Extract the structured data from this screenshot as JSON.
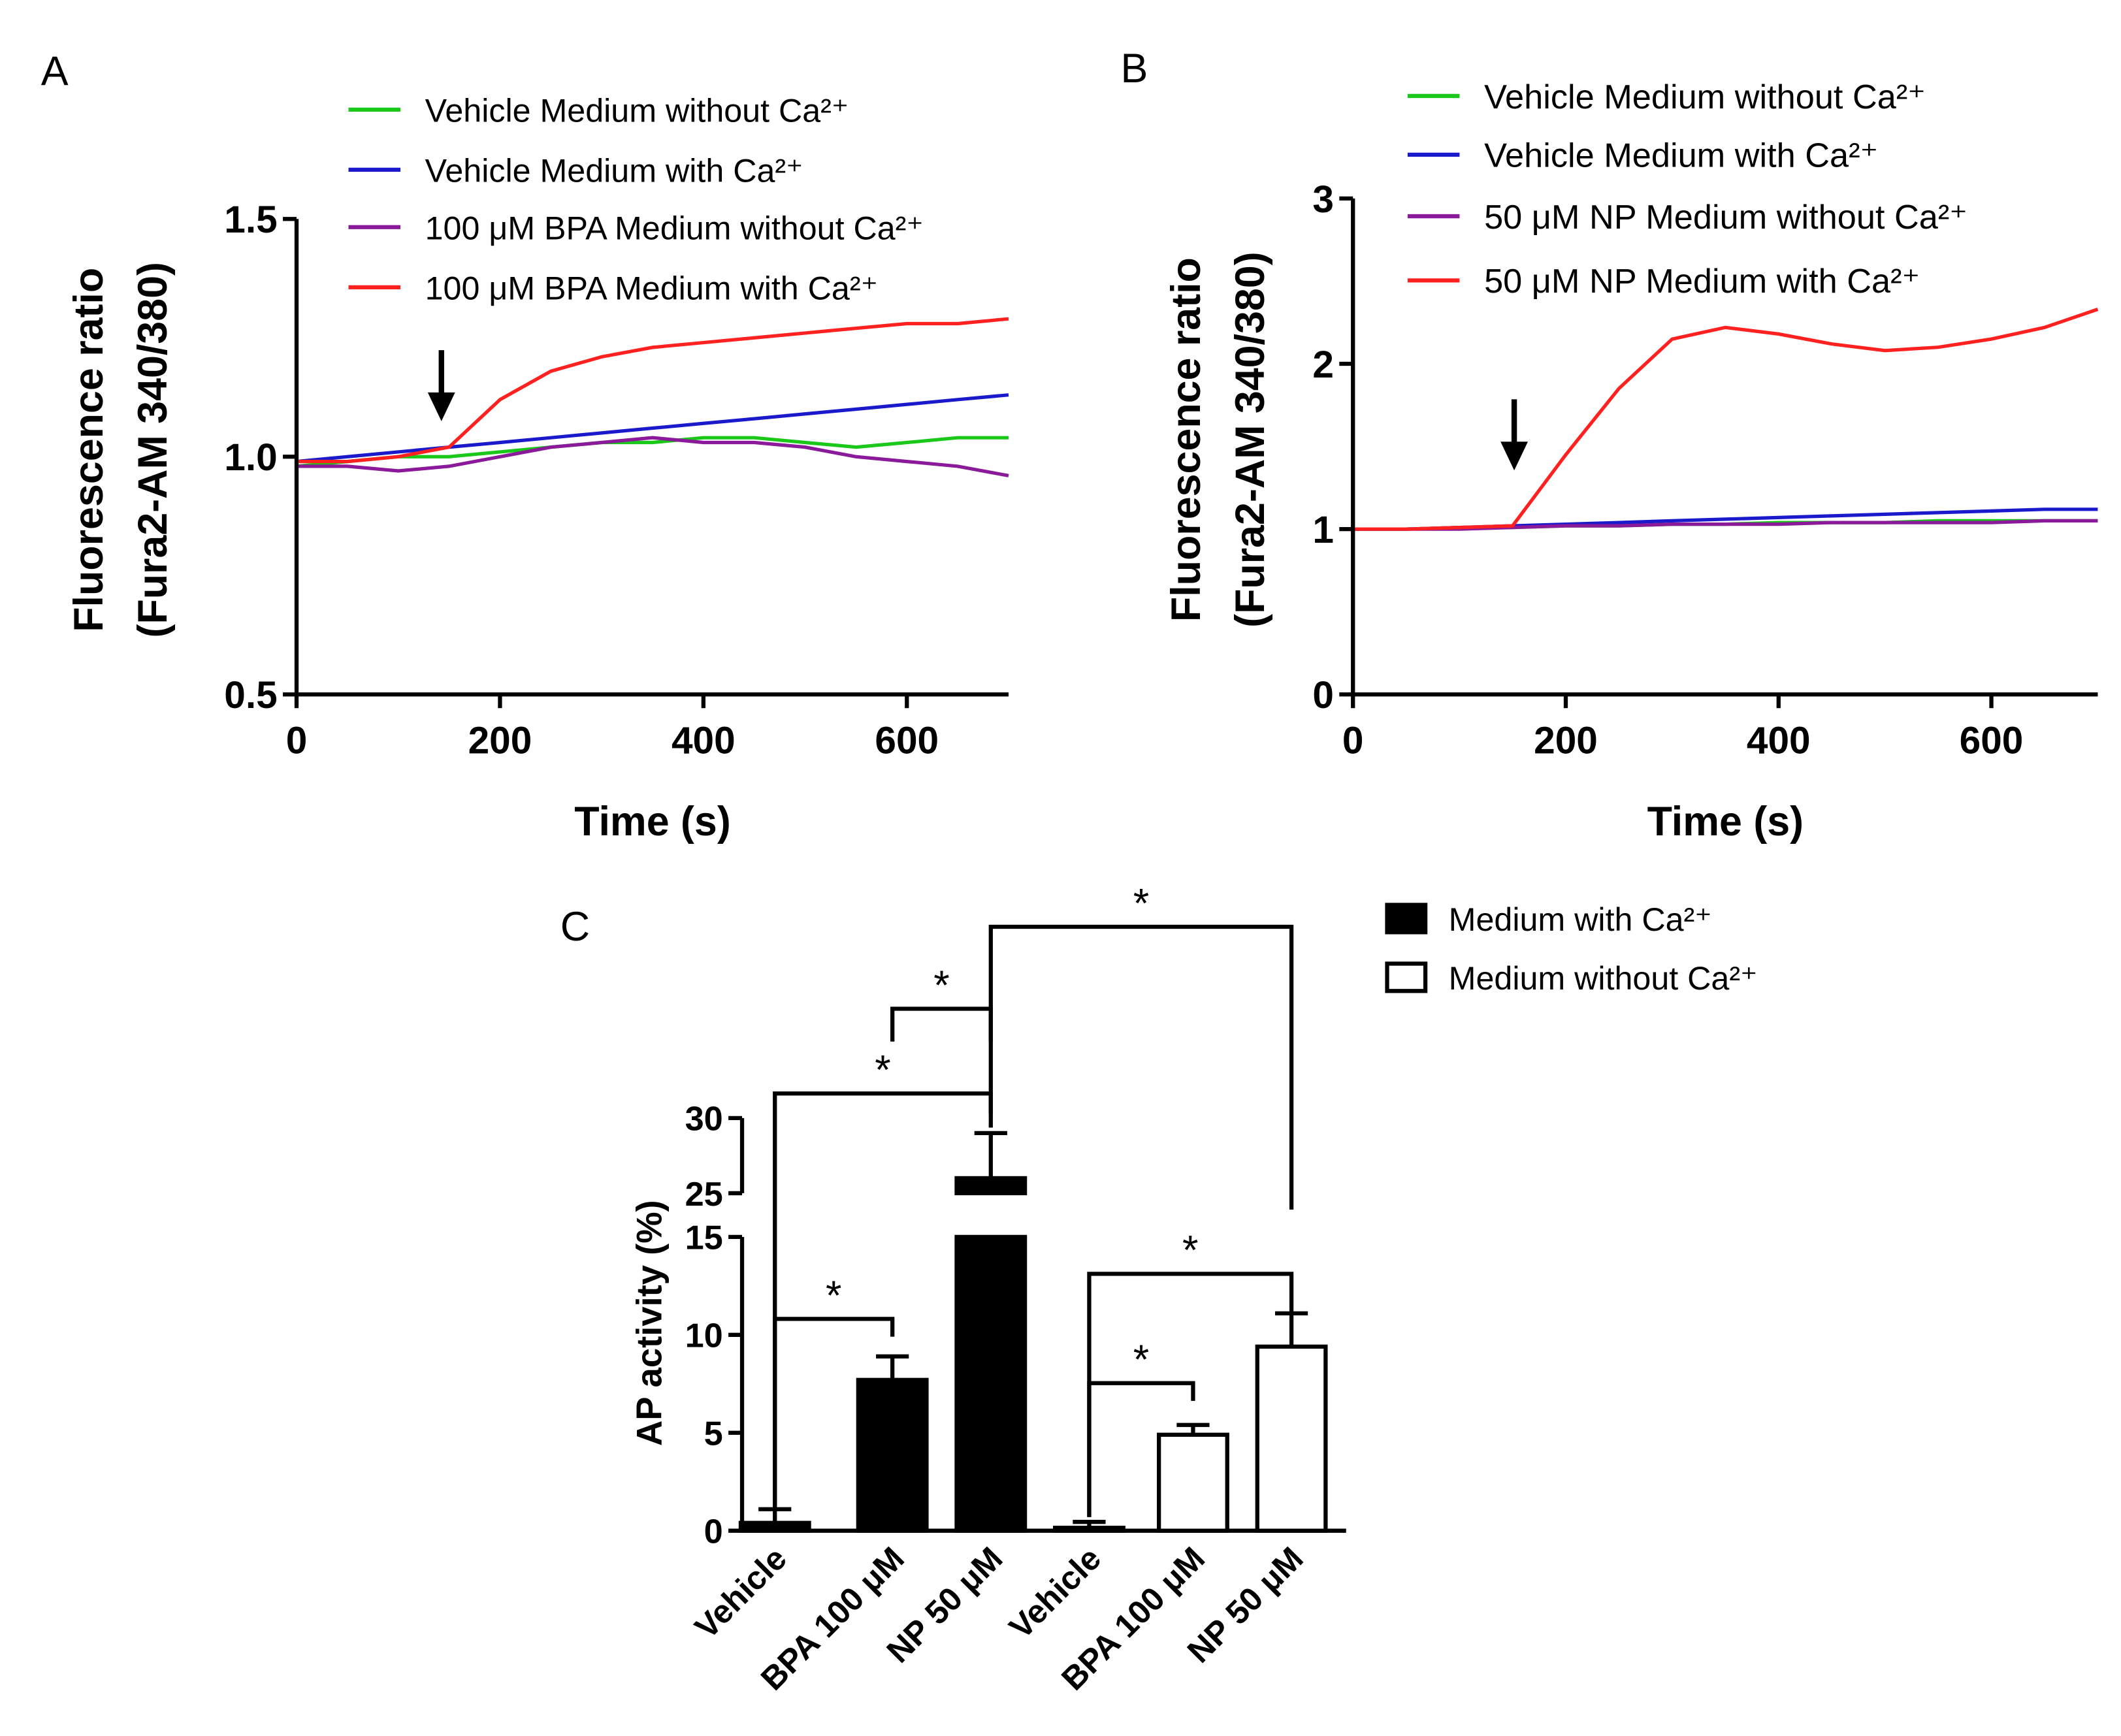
{
  "chart_data": [
    {
      "type": "line",
      "panel": "A",
      "ylabel": [
        "Fluorescence ratio",
        "(Fura2-AM 340/380)"
      ],
      "xlabel": "Time (s)",
      "xlim": [
        0,
        700
      ],
      "xticks": [
        0,
        200,
        400,
        600
      ],
      "ylim": [
        0.5,
        1.5
      ],
      "yticks": [
        0.5,
        {
          "value": 1,
          "label": "1.0"
        },
        1.5
      ],
      "x": [
        0,
        50,
        100,
        150,
        200,
        250,
        300,
        350,
        400,
        450,
        500,
        550,
        600,
        650,
        700
      ],
      "series": [
        {
          "name": "Vehicle Medium without Ca²⁺",
          "color": "#19c819",
          "values": [
            0.98,
            0.99,
            1.0,
            1.0,
            1.01,
            1.02,
            1.03,
            1.03,
            1.04,
            1.04,
            1.03,
            1.02,
            1.03,
            1.04,
            1.04
          ]
        },
        {
          "name": "Vehicle Medium with Ca²⁺",
          "color": "#1a1acc",
          "values": [
            0.99,
            1.0,
            1.01,
            1.02,
            1.03,
            1.04,
            1.05,
            1.06,
            1.07,
            1.08,
            1.09,
            1.1,
            1.11,
            1.12,
            1.13
          ]
        },
        {
          "name": "100 μM BPA Medium without Ca²⁺",
          "color": "#8a1a9a",
          "values": [
            0.98,
            0.98,
            0.97,
            0.98,
            1.0,
            1.02,
            1.03,
            1.04,
            1.03,
            1.03,
            1.02,
            1.0,
            0.99,
            0.98,
            0.96
          ]
        },
        {
          "name": "100 μM BPA Medium with Ca²⁺",
          "color": "#ff2020",
          "values": [
            0.99,
            0.99,
            1.0,
            1.02,
            1.12,
            1.18,
            1.21,
            1.23,
            1.24,
            1.25,
            1.26,
            1.27,
            1.28,
            1.28,
            1.29
          ]
        }
      ]
    },
    {
      "type": "line",
      "panel": "B",
      "ylabel": [
        "Fluorescence ratio",
        "(Fura2-AM 340/380)"
      ],
      "xlabel": "Time (s)",
      "xlim": [
        0,
        700
      ],
      "xticks": [
        0,
        200,
        400,
        600
      ],
      "ylim": [
        0,
        3
      ],
      "yticks": [
        0,
        1,
        2,
        3
      ],
      "x": [
        0,
        50,
        100,
        150,
        200,
        250,
        300,
        350,
        400,
        450,
        500,
        550,
        600,
        650,
        700
      ],
      "series": [
        {
          "name": "Vehicle Medium without Ca²⁺",
          "color": "#19c819",
          "values": [
            1.0,
            1.0,
            1.01,
            1.01,
            1.02,
            1.02,
            1.03,
            1.03,
            1.04,
            1.04,
            1.04,
            1.05,
            1.05,
            1.05,
            1.05
          ]
        },
        {
          "name": "Vehicle Medium with Ca²⁺",
          "color": "#1a1acc",
          "values": [
            1.0,
            1.0,
            1.01,
            1.02,
            1.03,
            1.04,
            1.05,
            1.06,
            1.07,
            1.08,
            1.09,
            1.1,
            1.11,
            1.12,
            1.12
          ]
        },
        {
          "name": "50 μM NP Medium without Ca²⁺",
          "color": "#8a1a9a",
          "values": [
            1.0,
            1.0,
            1.0,
            1.01,
            1.02,
            1.02,
            1.03,
            1.03,
            1.03,
            1.04,
            1.04,
            1.04,
            1.04,
            1.05,
            1.05
          ]
        },
        {
          "name": "50 μM NP Medium with Ca²⁺",
          "color": "#ff2020",
          "values": [
            1.0,
            1.0,
            1.01,
            1.02,
            1.45,
            1.85,
            2.15,
            2.22,
            2.18,
            2.12,
            2.08,
            2.1,
            2.15,
            2.22,
            2.33
          ]
        }
      ]
    },
    {
      "type": "bar",
      "panel": "C",
      "ylabel": "AP activity (%)",
      "categories": [
        "Vehicle",
        "BPA 100 μM",
        "NP 50 μM",
        "Vehicle",
        "BPA 100 μM",
        "NP 50 μM"
      ],
      "ylim": [
        0,
        30
      ],
      "ybreak": [
        15,
        25
      ],
      "yticks": [
        0,
        5,
        10,
        15,
        25,
        30
      ],
      "series": [
        {
          "name": "Medium with Ca²⁺",
          "color": "#000000",
          "values": [
            0.4,
            7.7,
            26,
            null,
            null,
            null
          ],
          "errors": [
            0.7,
            1.2,
            3,
            null,
            null,
            null
          ]
        },
        {
          "name": "Medium without Ca²⁺",
          "color": "#ffffff",
          "values": [
            null,
            null,
            null,
            0.15,
            4.9,
            9.4
          ],
          "errors": [
            null,
            null,
            null,
            0.3,
            0.5,
            1.7
          ]
        }
      ],
      "significance": [
        {
          "label": "*",
          "pair": [
            0,
            1
          ]
        },
        {
          "label": "*",
          "pair": [
            0,
            2
          ]
        },
        {
          "label": "*",
          "pair": [
            1,
            2
          ]
        },
        {
          "label": "*",
          "pair": [
            2,
            5
          ]
        },
        {
          "label": "*",
          "pair": [
            3,
            4
          ]
        },
        {
          "label": "*",
          "pair": [
            3,
            5
          ]
        }
      ]
    }
  ]
}
